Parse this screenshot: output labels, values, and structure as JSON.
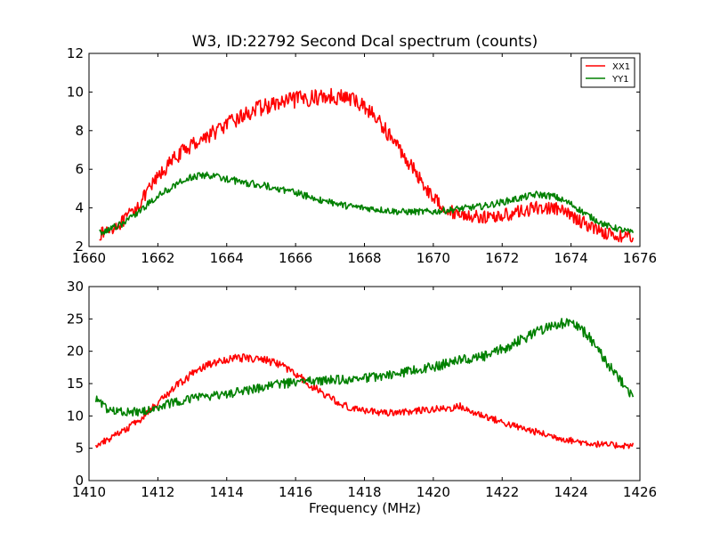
{
  "figure": {
    "title": "W3, ID:22792 Second Dcal spectrum (counts)",
    "xlabel": "Frequency (MHz)"
  },
  "colors": {
    "XX1": "#ff0000",
    "YY1": "#008000"
  },
  "chart_data": [
    {
      "type": "line",
      "title": "W3, ID:22792 Second Dcal spectrum (counts)",
      "xlabel": "",
      "ylabel": "",
      "xlim": [
        1660,
        1676
      ],
      "ylim": [
        2,
        12
      ],
      "xticks": [
        1660,
        1662,
        1664,
        1666,
        1668,
        1670,
        1672,
        1674,
        1676
      ],
      "yticks": [
        2,
        4,
        6,
        8,
        10,
        12
      ],
      "grid": false,
      "legend": "top-right",
      "series": [
        {
          "name": "XX1",
          "color": "#ff0000",
          "x": [
            1660.3,
            1661,
            1661.5,
            1662,
            1662.5,
            1663,
            1663.5,
            1664,
            1664.5,
            1665,
            1665.5,
            1666,
            1666.5,
            1667,
            1667.5,
            1668,
            1668.5,
            1669,
            1669.5,
            1670,
            1670.5,
            1671,
            1671.5,
            1672,
            1672.5,
            1673,
            1673.5,
            1674,
            1674.5,
            1675,
            1675.8
          ],
          "values": [
            2.6,
            3.3,
            4.3,
            5.6,
            6.6,
            7.3,
            7.8,
            8.3,
            8.8,
            9.2,
            9.4,
            9.6,
            9.7,
            9.8,
            9.7,
            9.3,
            8.3,
            7.1,
            5.8,
            4.5,
            3.8,
            3.6,
            3.5,
            3.6,
            3.8,
            4.0,
            4.0,
            3.6,
            3.1,
            2.7,
            2.4
          ]
        },
        {
          "name": "YY1",
          "color": "#008000",
          "x": [
            1660.3,
            1661,
            1661.5,
            1662,
            1662.5,
            1663,
            1663.5,
            1664,
            1664.5,
            1665,
            1665.5,
            1666,
            1666.5,
            1667,
            1667.5,
            1668,
            1668.5,
            1669,
            1669.5,
            1670,
            1670.5,
            1671,
            1671.5,
            1672,
            1672.5,
            1673,
            1673.5,
            1674,
            1674.5,
            1675,
            1675.8
          ],
          "values": [
            2.7,
            3.2,
            3.9,
            4.6,
            5.2,
            5.6,
            5.7,
            5.5,
            5.3,
            5.2,
            5.0,
            4.8,
            4.5,
            4.3,
            4.1,
            4.0,
            3.9,
            3.8,
            3.8,
            3.8,
            3.9,
            4.0,
            4.1,
            4.3,
            4.5,
            4.7,
            4.6,
            4.2,
            3.6,
            3.1,
            2.7
          ]
        }
      ]
    },
    {
      "type": "line",
      "title": "",
      "xlabel": "Frequency (MHz)",
      "ylabel": "",
      "xlim": [
        1410,
        1426
      ],
      "ylim": [
        0,
        30
      ],
      "xticks": [
        1410,
        1412,
        1414,
        1416,
        1418,
        1420,
        1422,
        1424,
        1426
      ],
      "yticks": [
        0,
        5,
        10,
        15,
        20,
        25,
        30
      ],
      "grid": false,
      "series": [
        {
          "name": "XX1",
          "color": "#ff0000",
          "x": [
            1410.2,
            1410.5,
            1411,
            1411.5,
            1412,
            1412.5,
            1413,
            1413.5,
            1414,
            1414.5,
            1415,
            1415.5,
            1416,
            1416.5,
            1417,
            1417.5,
            1418,
            1418.5,
            1419,
            1419.5,
            1420,
            1420.5,
            1420.8,
            1421,
            1421.5,
            1422,
            1422.5,
            1423,
            1423.5,
            1424,
            1424.5,
            1425,
            1425.8
          ],
          "values": [
            5.5,
            6.2,
            7.6,
            9.5,
            12.0,
            14.5,
            16.5,
            18.0,
            18.8,
            19.0,
            18.8,
            18.0,
            16.5,
            14.5,
            12.8,
            11.5,
            10.8,
            10.5,
            10.6,
            10.8,
            11.0,
            11.2,
            11.5,
            10.8,
            10.0,
            9.0,
            8.2,
            7.5,
            6.8,
            6.2,
            5.8,
            5.5,
            5.4
          ]
        },
        {
          "name": "YY1",
          "color": "#008000",
          "x": [
            1410.2,
            1410.5,
            1411,
            1411.5,
            1412,
            1412.5,
            1413,
            1413.5,
            1414,
            1414.5,
            1415,
            1415.5,
            1416,
            1416.5,
            1417,
            1417.5,
            1418,
            1418.5,
            1419,
            1419.5,
            1420,
            1420.5,
            1420.8,
            1421,
            1421.5,
            1422,
            1422.5,
            1423,
            1423.5,
            1424,
            1424.5,
            1425,
            1425.8
          ],
          "values": [
            12.5,
            11.2,
            10.6,
            10.7,
            11.4,
            12.1,
            12.7,
            13.1,
            13.4,
            13.8,
            14.3,
            14.9,
            15.2,
            15.4,
            15.5,
            15.6,
            15.8,
            16.1,
            16.6,
            17.1,
            17.6,
            18.2,
            18.8,
            18.6,
            19.2,
            20.3,
            21.6,
            23.1,
            24.2,
            24.4,
            22.5,
            18.5,
            13.0
          ]
        }
      ]
    }
  ]
}
